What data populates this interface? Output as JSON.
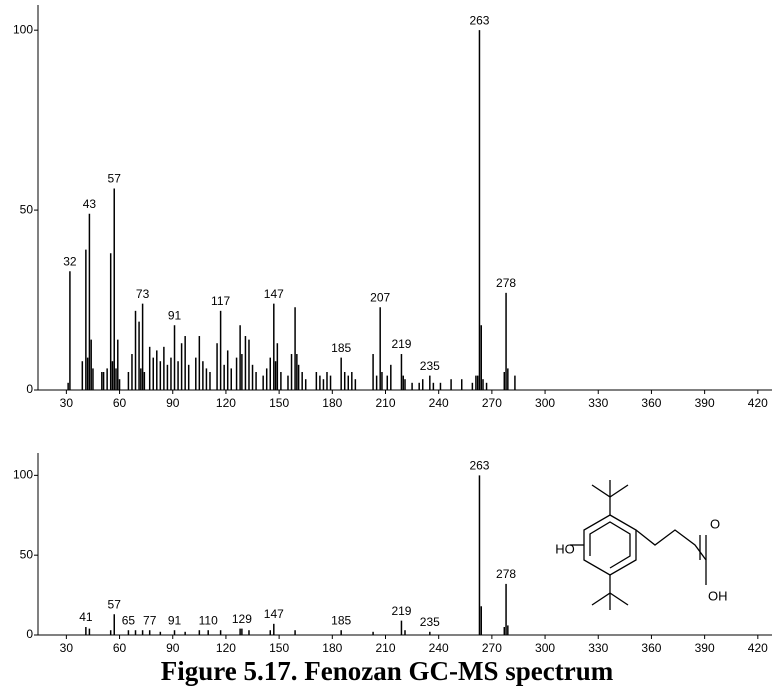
{
  "chart_data": [
    {
      "type": "bar",
      "x": [
        31,
        32,
        39,
        41,
        42,
        43,
        44,
        45,
        50,
        51,
        53,
        55,
        56,
        57,
        58,
        59,
        60,
        65,
        67,
        69,
        71,
        72,
        73,
        74,
        77,
        79,
        81,
        83,
        85,
        87,
        89,
        91,
        93,
        95,
        97,
        99,
        103,
        105,
        107,
        109,
        111,
        115,
        117,
        119,
        121,
        123,
        126,
        128,
        129,
        131,
        133,
        135,
        137,
        141,
        143,
        145,
        147,
        148,
        149,
        151,
        155,
        157,
        159,
        160,
        161,
        163,
        165,
        171,
        173,
        175,
        177,
        179,
        185,
        187,
        189,
        191,
        193,
        203,
        205,
        207,
        208,
        211,
        213,
        219,
        220,
        221,
        225,
        229,
        231,
        235,
        237,
        241,
        247,
        253,
        259,
        261,
        262,
        263,
        264,
        265,
        267,
        277,
        278,
        279,
        283
      ],
      "values": [
        2,
        33,
        8,
        39,
        9,
        49,
        14,
        6,
        5,
        5,
        6,
        38,
        8,
        56,
        6,
        14,
        3,
        5,
        10,
        22,
        19,
        6,
        24,
        5,
        12,
        9,
        11,
        8,
        12,
        7,
        9,
        18,
        8,
        13,
        15,
        7,
        9,
        15,
        8,
        6,
        5,
        13,
        22,
        7,
        11,
        6,
        9,
        18,
        10,
        15,
        14,
        7,
        5,
        4,
        6,
        9,
        24,
        8,
        13,
        5,
        4,
        10,
        23,
        10,
        7,
        5,
        3,
        5,
        4,
        3,
        5,
        4,
        9,
        5,
        4,
        5,
        3,
        10,
        4,
        23,
        5,
        4,
        7,
        10,
        4,
        3,
        2,
        2,
        3,
        4,
        2,
        2,
        3,
        3,
        2,
        4,
        4,
        100,
        18,
        3,
        2,
        5,
        27,
        6,
        4
      ],
      "peak_labels": [
        32,
        43,
        57,
        73,
        91,
        117,
        147,
        185,
        207,
        219,
        235,
        263,
        278
      ],
      "color": "#000000",
      "xlim": [
        14,
        428
      ],
      "ylim": [
        0,
        107
      ],
      "xticks": [
        30,
        60,
        90,
        120,
        150,
        180,
        210,
        240,
        270,
        300,
        330,
        360,
        390,
        420
      ],
      "yticks": [
        0,
        50,
        100
      ]
    },
    {
      "type": "bar",
      "x": [
        41,
        43,
        55,
        57,
        65,
        69,
        73,
        77,
        83,
        91,
        97,
        105,
        110,
        117,
        128,
        129,
        133,
        145,
        147,
        159,
        185,
        203,
        219,
        221,
        235,
        263,
        264,
        277,
        278,
        279
      ],
      "values": [
        5,
        4,
        3,
        13,
        3,
        3,
        3,
        3,
        2,
        3,
        2,
        3,
        3,
        3,
        4,
        4,
        3,
        3,
        7,
        3,
        3,
        2,
        9,
        3,
        2,
        100,
        18,
        5,
        32,
        6
      ],
      "peak_labels": [
        41,
        57,
        65,
        77,
        91,
        110,
        129,
        147,
        185,
        219,
        235,
        263,
        278
      ],
      "color": "#000000",
      "xlim": [
        14,
        428
      ],
      "ylim": [
        0,
        114
      ],
      "xticks": [
        30,
        60,
        90,
        120,
        150,
        180,
        210,
        240,
        270,
        300,
        330,
        360,
        390,
        420
      ],
      "yticks": [
        0,
        50,
        100
      ],
      "annotations": [
        "HO",
        "O",
        "OH"
      ]
    }
  ],
  "caption": "Figure 5.17. Fenozan GC-MS spectrum"
}
